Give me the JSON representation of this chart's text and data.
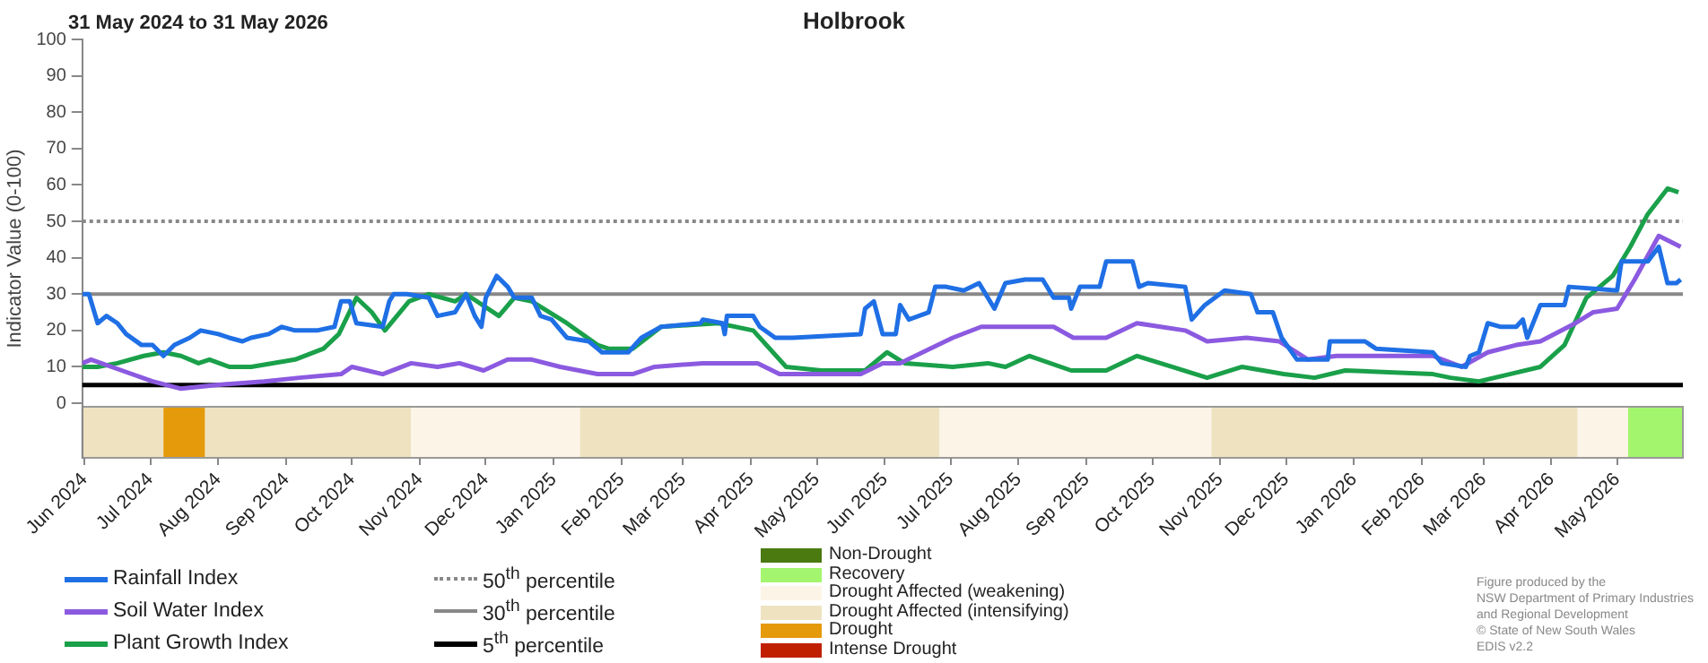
{
  "chart_data": {
    "type": "line",
    "title": "Holbrook",
    "subtitle": "31 May 2024 to 31 May 2026",
    "ylabel": "Indicator Value (0-100)",
    "xlim": [
      "2024-05-31",
      "2026-05-31"
    ],
    "xticks": [
      {
        "value": "2024-06-01",
        "label": "Jun 2024"
      },
      {
        "value": "2024-07-01",
        "label": "Jul 2024"
      },
      {
        "value": "2024-08-01",
        "label": "Aug 2024"
      },
      {
        "value": "2024-09-01",
        "label": "Sep 2024"
      },
      {
        "value": "2024-10-01",
        "label": "Oct 2024"
      },
      {
        "value": "2024-11-01",
        "label": "Nov 2024"
      },
      {
        "value": "2024-12-01",
        "label": "Dec 2024"
      },
      {
        "value": "2025-01-01",
        "label": "Jan 2025"
      },
      {
        "value": "2025-02-01",
        "label": "Feb 2025"
      },
      {
        "value": "2025-03-01",
        "label": "Mar 2025"
      },
      {
        "value": "2025-04-01",
        "label": "Apr 2025"
      },
      {
        "value": "2025-05-01",
        "label": "May 2025"
      },
      {
        "value": "2025-06-01",
        "label": "Jun 2025"
      },
      {
        "value": "2025-07-01",
        "label": "Jul 2025"
      },
      {
        "value": "2025-08-01",
        "label": "Aug 2025"
      },
      {
        "value": "2025-09-01",
        "label": "Sep 2025"
      },
      {
        "value": "2025-10-01",
        "label": "Oct 2025"
      },
      {
        "value": "2025-11-01",
        "label": "Nov 2025"
      },
      {
        "value": "2025-12-01",
        "label": "Dec 2025"
      },
      {
        "value": "2026-01-01",
        "label": "Jan 2026"
      },
      {
        "value": "2026-02-01",
        "label": "Feb 2026"
      },
      {
        "value": "2026-03-01",
        "label": "Mar 2026"
      },
      {
        "value": "2026-04-01",
        "label": "Apr 2026"
      },
      {
        "value": "2026-05-01",
        "label": "May 2026"
      }
    ],
    "ylim": [
      -15,
      100
    ],
    "yticks": [
      0,
      10,
      20,
      30,
      40,
      50,
      60,
      70,
      80,
      90,
      100
    ],
    "grid": false,
    "legend": "bottom",
    "marker": "none",
    "line_style": "solid",
    "series": [
      {
        "name": "Rainfall Index",
        "color": "#1f6fe5",
        "x": [
          "2024-05-31",
          "2024-06-03",
          "2024-06-07",
          "2024-06-11",
          "2024-06-16",
          "2024-06-20",
          "2024-06-27",
          "2024-07-02",
          "2024-07-07",
          "2024-07-12",
          "2024-07-19",
          "2024-07-24",
          "2024-08-01",
          "2024-08-06",
          "2024-08-12",
          "2024-08-16",
          "2024-08-24",
          "2024-08-30",
          "2024-09-05",
          "2024-09-15",
          "2024-09-23",
          "2024-09-26",
          "2024-09-30",
          "2024-10-03",
          "2024-10-15",
          "2024-10-18",
          "2024-10-20",
          "2024-10-26",
          "2024-11-05",
          "2024-11-09",
          "2024-11-17",
          "2024-11-22",
          "2024-11-26",
          "2024-11-29",
          "2024-12-01",
          "2024-12-06",
          "2024-12-11",
          "2024-12-14",
          "2024-12-22",
          "2024-12-26",
          "2024-12-31",
          "2025-01-07",
          "2025-01-17",
          "2025-01-21",
          "2025-01-23",
          "2025-02-04",
          "2025-02-10",
          "2025-02-19",
          "2025-03-09",
          "2025-03-10",
          "2025-03-19",
          "2025-03-20",
          "2025-03-21",
          "2025-04-02",
          "2025-04-05",
          "2025-04-12",
          "2025-04-20",
          "2025-05-21",
          "2025-05-23",
          "2025-05-27",
          "2025-05-31",
          "2025-06-06",
          "2025-06-08",
          "2025-06-12",
          "2025-06-21",
          "2025-06-24",
          "2025-06-29",
          "2025-07-07",
          "2025-07-14",
          "2025-07-21",
          "2025-07-26",
          "2025-08-04",
          "2025-08-12",
          "2025-08-17",
          "2025-08-24",
          "2025-08-25",
          "2025-08-29",
          "2025-09-07",
          "2025-09-10",
          "2025-09-22",
          "2025-09-25",
          "2025-09-29",
          "2025-10-16",
          "2025-10-19",
          "2025-10-25",
          "2025-11-03",
          "2025-11-15",
          "2025-11-18",
          "2025-11-25",
          "2025-11-29",
          "2025-12-06",
          "2025-12-20",
          "2025-12-21",
          "2026-01-06",
          "2026-01-11",
          "2026-02-06",
          "2026-02-10",
          "2026-02-21",
          "2026-02-23",
          "2026-02-27",
          "2026-03-03",
          "2026-03-09",
          "2026-03-16",
          "2026-03-19",
          "2026-03-21",
          "2026-03-27",
          "2026-04-07",
          "2026-04-09",
          "2026-05-01",
          "2026-05-03",
          "2026-05-15",
          "2026-05-20",
          "2026-05-24",
          "2026-05-28",
          "2026-05-30"
        ],
        "values": [
          30,
          30,
          22,
          24,
          22,
          19,
          16,
          16,
          13,
          16,
          18,
          20,
          19,
          18,
          17,
          18,
          19,
          21,
          20,
          20,
          21,
          28,
          28,
          22,
          21,
          28,
          30,
          30,
          29,
          24,
          25,
          30,
          24,
          21,
          29,
          35,
          32,
          29,
          29,
          24,
          23,
          18,
          17,
          15,
          14,
          14,
          18,
          21,
          22,
          23,
          22,
          19,
          24,
          24,
          21,
          18,
          18,
          19,
          26,
          28,
          19,
          19,
          27,
          23,
          25,
          32,
          32,
          31,
          33,
          26,
          33,
          34,
          34,
          29,
          29,
          26,
          32,
          32,
          39,
          39,
          32,
          33,
          32,
          23,
          27,
          31,
          30,
          25,
          25,
          18,
          12,
          12,
          17,
          17,
          15,
          14,
          11,
          10,
          13,
          14,
          22,
          21,
          21,
          23,
          18,
          27,
          27,
          32,
          31,
          39,
          39,
          43,
          33,
          33,
          34
        ]
      },
      {
        "name": "Soil Water Index",
        "color": "#8b5ae0",
        "x": [
          "2024-05-31",
          "2024-06-04",
          "2024-06-18",
          "2024-07-02",
          "2024-07-15",
          "2024-07-31",
          "2024-08-22",
          "2024-09-07",
          "2024-09-26",
          "2024-10-01",
          "2024-10-15",
          "2024-10-28",
          "2024-11-09",
          "2024-11-19",
          "2024-11-30",
          "2024-12-11",
          "2024-12-22",
          "2025-01-04",
          "2025-01-21",
          "2025-02-06",
          "2025-02-16",
          "2025-03-10",
          "2025-04-04",
          "2025-04-14",
          "2025-04-28",
          "2025-05-21",
          "2025-05-31",
          "2025-06-08",
          "2025-07-02",
          "2025-07-15",
          "2025-08-17",
          "2025-08-26",
          "2025-09-10",
          "2025-09-24",
          "2025-10-16",
          "2025-10-26",
          "2025-11-13",
          "2025-11-28",
          "2025-12-11",
          "2025-12-24",
          "2026-02-06",
          "2026-02-19",
          "2026-03-03",
          "2026-03-16",
          "2026-03-27",
          "2026-04-12",
          "2026-04-20",
          "2026-05-01",
          "2026-05-09",
          "2026-05-20",
          "2026-05-30"
        ],
        "values": [
          11,
          12,
          9,
          6,
          4,
          5,
          6,
          7,
          8,
          10,
          8,
          11,
          10,
          11,
          9,
          12,
          12,
          10,
          8,
          8,
          10,
          11,
          11,
          8,
          8,
          8,
          11,
          11,
          18,
          21,
          21,
          18,
          18,
          22,
          20,
          17,
          18,
          17,
          12,
          13,
          13,
          10,
          14,
          16,
          17,
          22,
          25,
          26,
          34,
          46,
          43
        ]
      },
      {
        "name": "Plant Growth Index",
        "color": "#1aa04a",
        "x": [
          "2024-05-31",
          "2024-06-07",
          "2024-06-16",
          "2024-06-28",
          "2024-07-07",
          "2024-07-15",
          "2024-07-23",
          "2024-07-28",
          "2024-08-06",
          "2024-08-16",
          "2024-09-05",
          "2024-09-18",
          "2024-09-25",
          "2024-10-03",
          "2024-10-10",
          "2024-10-16",
          "2024-10-27",
          "2024-11-05",
          "2024-11-17",
          "2024-11-22",
          "2024-12-07",
          "2024-12-14",
          "2024-12-22",
          "2025-01-07",
          "2025-01-21",
          "2025-01-26",
          "2025-02-06",
          "2025-02-19",
          "2025-03-17",
          "2025-04-02",
          "2025-04-17",
          "2025-05-03",
          "2025-05-23",
          "2025-06-02",
          "2025-06-10",
          "2025-07-02",
          "2025-07-18",
          "2025-07-26",
          "2025-08-06",
          "2025-08-25",
          "2025-09-10",
          "2025-09-24",
          "2025-10-10",
          "2025-10-26",
          "2025-11-11",
          "2025-11-30",
          "2025-12-14",
          "2025-12-28",
          "2026-02-06",
          "2026-02-14",
          "2026-02-27",
          "2026-03-13",
          "2026-03-27",
          "2026-04-07",
          "2026-04-17",
          "2026-04-29",
          "2026-05-07",
          "2026-05-15",
          "2026-05-24",
          "2026-05-29"
        ],
        "values": [
          10,
          10,
          11,
          13,
          14,
          13,
          11,
          12,
          10,
          10,
          12,
          15,
          19,
          29,
          25,
          20,
          28,
          30,
          28,
          30,
          24,
          29,
          28,
          22,
          16,
          15,
          15,
          21,
          22,
          20,
          10,
          9,
          9,
          14,
          11,
          10,
          11,
          10,
          13,
          9,
          9,
          13,
          10,
          7,
          10,
          8,
          7,
          9,
          8,
          7,
          6,
          8,
          10,
          16,
          29,
          35,
          43,
          52,
          59,
          58
        ]
      }
    ],
    "ref_lines": [
      {
        "axis": "y",
        "value": 50,
        "label": "50$^{th}$ percentile",
        "color": "#888888",
        "line_style": "dotted"
      },
      {
        "axis": "y",
        "value": 30,
        "label": "30$^{th}$ percentile",
        "color": "#888888",
        "line_style": "solid"
      },
      {
        "axis": "y",
        "value": 5,
        "label": "5$^{th}$ percentile",
        "color": "#000000",
        "line_style": "solid"
      }
    ],
    "bands": [
      {
        "axis": "x",
        "from": "2024-05-31",
        "to": "2024-07-07",
        "color": "#eee2c0"
      },
      {
        "axis": "x",
        "from": "2024-07-07",
        "to": "2024-07-26",
        "color": "#e59a0c"
      },
      {
        "axis": "x",
        "from": "2024-07-26",
        "to": "2024-10-28",
        "color": "#eee2c0"
      },
      {
        "axis": "x",
        "from": "2024-10-28",
        "to": "2025-01-13",
        "color": "#fcf4e6"
      },
      {
        "axis": "x",
        "from": "2025-01-13",
        "to": "2025-06-26",
        "color": "#eee2c0"
      },
      {
        "axis": "x",
        "from": "2025-06-26",
        "to": "2025-10-28",
        "color": "#fcf4e6"
      },
      {
        "axis": "x",
        "from": "2025-10-28",
        "to": "2026-04-13",
        "color": "#eee2c0"
      },
      {
        "axis": "x",
        "from": "2026-04-13",
        "to": "2026-05-06",
        "color": "#fcf4e6"
      },
      {
        "axis": "x",
        "from": "2026-05-06",
        "to": "2026-05-31",
        "color": "#a3f56e"
      }
    ],
    "annotations": [
      "Non-Drought",
      "Recovery",
      "Drought Affected (weakening)",
      "Drought Affected (intensifying)",
      "Drought",
      "Intense Drought",
      "Figure produced by the",
      "NSW Department of Primary Industries",
      "and Regional Development",
      "© State of New South Wales",
      "EDIS v2.2"
    ]
  }
}
